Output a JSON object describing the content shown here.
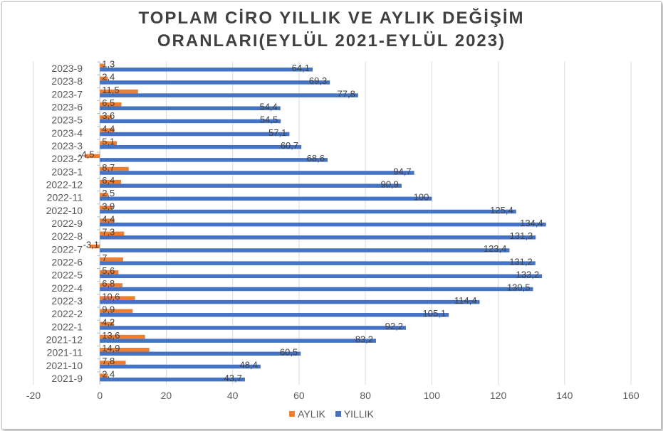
{
  "chart_data": {
    "type": "bar",
    "orientation": "horizontal",
    "title": [
      "TOPLAM CİRO YILLIK VE AYLIK DEĞİŞİM",
      "ORANLARI(EYLÜL 2021-EYLÜL 2023)"
    ],
    "categories": [
      "2023-9",
      "2023-8",
      "2023-7",
      "2023-6",
      "2023-5",
      "2023-4",
      "2023-3",
      "2023-2",
      "2023-1",
      "2022-12",
      "2022-11",
      "2022-10",
      "2022-9",
      "2022-8",
      "2022-7",
      "2022-6",
      "2022-5",
      "2022-4",
      "2022-3",
      "2022-2",
      "2022-1",
      "2021-12",
      "2021-11",
      "2021-10",
      "2021-9"
    ],
    "series": [
      {
        "name": "AYLIK",
        "color": "#ed7d31",
        "values": [
          1.3,
          2.4,
          11.5,
          6.5,
          3.6,
          4.4,
          5.1,
          -4.5,
          8.7,
          6.4,
          2.5,
          3.9,
          4.4,
          7.3,
          -3.1,
          7,
          5.6,
          6.8,
          10.6,
          9.9,
          4.2,
          13.6,
          14.9,
          7.8,
          2.4
        ],
        "labels": [
          "1,3",
          "2,4",
          "11,5",
          "6,5",
          "3,6",
          "4,4",
          "5,1",
          "-4,5",
          "8,7",
          "6,4",
          "2,5",
          "3,9",
          "4,4",
          "7,3",
          "-3,1",
          "7",
          "5,6",
          "6,8",
          "10,6",
          "9,9",
          "4,2",
          "13,6",
          "14,9",
          "7,8",
          "2,4"
        ]
      },
      {
        "name": "YILLIK",
        "color": "#4472c4",
        "values": [
          64.1,
          69.3,
          77.8,
          54.4,
          54.5,
          57.1,
          60.7,
          68.6,
          94.7,
          90.9,
          100,
          125.4,
          134.4,
          131.3,
          123.4,
          131.2,
          133.2,
          130.5,
          114.4,
          105.1,
          92.2,
          83.2,
          60.5,
          48.4,
          43.7
        ],
        "labels": [
          "64,1",
          "69,3",
          "77,8",
          "54,4",
          "54,5",
          "57,1",
          "60,7",
          "68,6",
          "94,7",
          "90,9",
          "100",
          "125,4",
          "134,4",
          "131,3",
          "123,4",
          "131,2",
          "133,2",
          "130,5",
          "114,4",
          "105,1",
          "92,2",
          "83,2",
          "60,5",
          "48,4",
          "43,7"
        ]
      }
    ],
    "xlim": [
      -20,
      160
    ],
    "xticks": [
      -20,
      0,
      20,
      40,
      60,
      80,
      100,
      120,
      140,
      160
    ],
    "xlabel": "",
    "ylabel": "",
    "grid": "vertical",
    "legend": "bottom"
  }
}
